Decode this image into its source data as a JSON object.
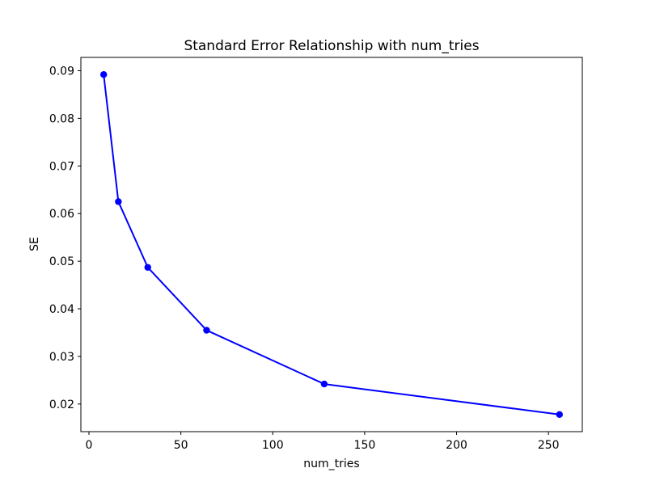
{
  "chart_data": {
    "type": "line",
    "title": "Standard Error Relationship with num_tries",
    "xlabel": "num_tries",
    "ylabel": "SE",
    "x": [
      8,
      16,
      32,
      64,
      128,
      256
    ],
    "y": [
      0.0892,
      0.0625,
      0.0487,
      0.0355,
      0.0242,
      0.0178
    ],
    "line_color": "#0000ff",
    "marker": "circle",
    "xlim": [
      -4.4,
      268.4
    ],
    "ylim": [
      0.0142,
      0.0928
    ],
    "xticks": {
      "values": [
        0,
        50,
        100,
        150,
        200,
        250
      ],
      "labels": [
        "0",
        "50",
        "100",
        "150",
        "200",
        "250"
      ]
    },
    "yticks": {
      "values": [
        0.02,
        0.03,
        0.04,
        0.05,
        0.06,
        0.07,
        0.08,
        0.09
      ],
      "labels": [
        "0.02",
        "0.03",
        "0.04",
        "0.05",
        "0.06",
        "0.07",
        "0.08",
        "0.09"
      ]
    },
    "grid": false,
    "legend": "none",
    "background": "#ffffff"
  }
}
